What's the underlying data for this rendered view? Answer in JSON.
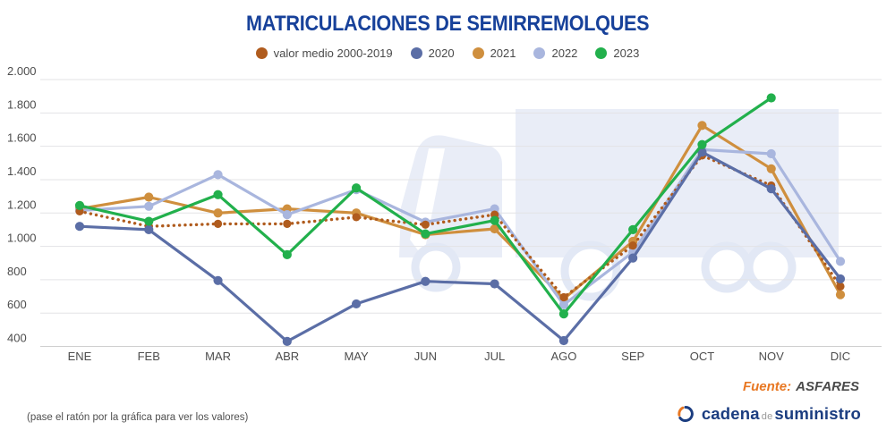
{
  "title": "MATRICULACIONES DE SEMIRREMOLQUES",
  "chart_data": {
    "type": "line",
    "title": "MATRICULACIONES DE SEMIRREMOLQUES",
    "categories": [
      "ENE",
      "FEB",
      "MAR",
      "ABR",
      "MAY",
      "JUN",
      "JUL",
      "AGO",
      "SEP",
      "OCT",
      "NOV",
      "DIC"
    ],
    "series": [
      {
        "name": "valor medio 2000-2019",
        "color": "#b05c1e",
        "line_style": "dotted",
        "values": [
          1210,
          1120,
          1135,
          1135,
          1175,
          1130,
          1190,
          695,
          1005,
          1545,
          1365,
          760
        ]
      },
      {
        "name": "2020",
        "color": "#5b6ea6",
        "line_style": "solid",
        "values": [
          1120,
          1100,
          795,
          430,
          655,
          790,
          775,
          435,
          930,
          1565,
          1345,
          805
        ]
      },
      {
        "name": "2021",
        "color": "#cf8f3e",
        "line_style": "solid",
        "values": [
          1225,
          1295,
          1200,
          1225,
          1200,
          1070,
          1105,
          685,
          1030,
          1725,
          1465,
          710
        ]
      },
      {
        "name": "2022",
        "color": "#a9b6de",
        "line_style": "solid",
        "values": [
          1215,
          1240,
          1430,
          1190,
          1340,
          1145,
          1225,
          650,
          965,
          1580,
          1555,
          910
        ]
      },
      {
        "name": "2023",
        "color": "#22b04c",
        "line_style": "solid",
        "values": [
          1245,
          1150,
          1310,
          950,
          1350,
          1075,
          1155,
          595,
          1100,
          1610,
          1890,
          null
        ]
      }
    ],
    "ylim": [
      400,
      2000
    ],
    "ytick_step": 200,
    "ytick_labels": [
      "400",
      "600",
      "800",
      "1.000",
      "1.200",
      "1.400",
      "1.600",
      "1.800",
      "2.000"
    ],
    "grid": true,
    "legend_position": "top"
  },
  "footer": {
    "source_label": "Fuente:",
    "source_name": "ASFARES",
    "hover_note": "(pase el ratón por la gráfica para ver los valores)"
  },
  "logo": {
    "word1": "cadena",
    "word2": "de",
    "word3": "suministro"
  },
  "colors": {
    "title": "#17419a",
    "source_label": "#e87722",
    "logo_text": "#1b3d80",
    "axis_text": "#4d4d4d",
    "gridline": "#e3e3e6",
    "watermark": "#e9edf7"
  }
}
